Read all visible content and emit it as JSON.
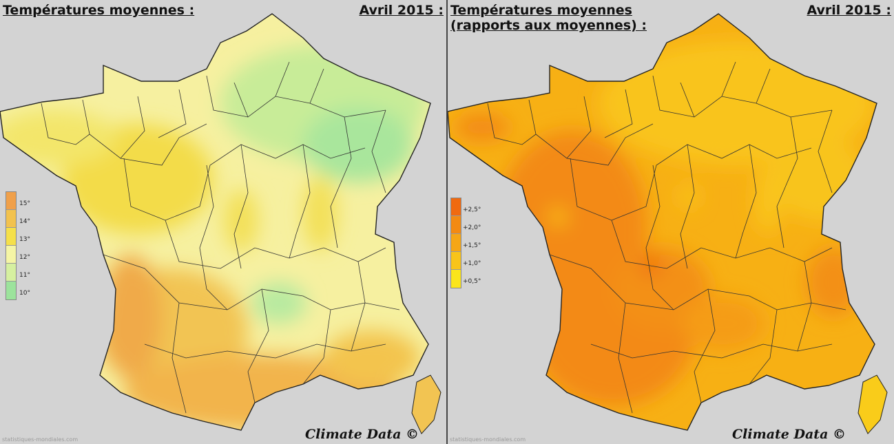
{
  "left": {
    "title": "Températures moyennes :",
    "date": "Avril 2015 :",
    "credit": "Climate Data ©",
    "source": "statistiques-mondiales.com",
    "legend": [
      {
        "label": "15°",
        "color": "#f0a04a"
      },
      {
        "label": "14°",
        "color": "#f2c24e"
      },
      {
        "label": "13°",
        "color": "#f5e04a"
      },
      {
        "label": "12°",
        "color": "#f5f5a5"
      },
      {
        "label": "11°",
        "color": "#d6f0a0"
      },
      {
        "label": "10°",
        "color": "#9ce39c"
      }
    ]
  },
  "right": {
    "title_line1": "Températures moyennes",
    "title_line2": "(rapports aux moyennes) :",
    "date": "Avril 2015 :",
    "credit": "Climate Data ©",
    "source": "statistiques-mondiales.com",
    "legend": [
      {
        "label": "+2,5°",
        "color": "#f06a10"
      },
      {
        "label": "+2,0°",
        "color": "#f38a12"
      },
      {
        "label": "+1,5°",
        "color": "#f5a616"
      },
      {
        "label": "+1,0°",
        "color": "#f8c41a"
      },
      {
        "label": "+0,5°",
        "color": "#fbe51c"
      }
    ]
  },
  "colors": {
    "background": "#d3d3d3",
    "border": "#222222",
    "text": "#111111"
  }
}
